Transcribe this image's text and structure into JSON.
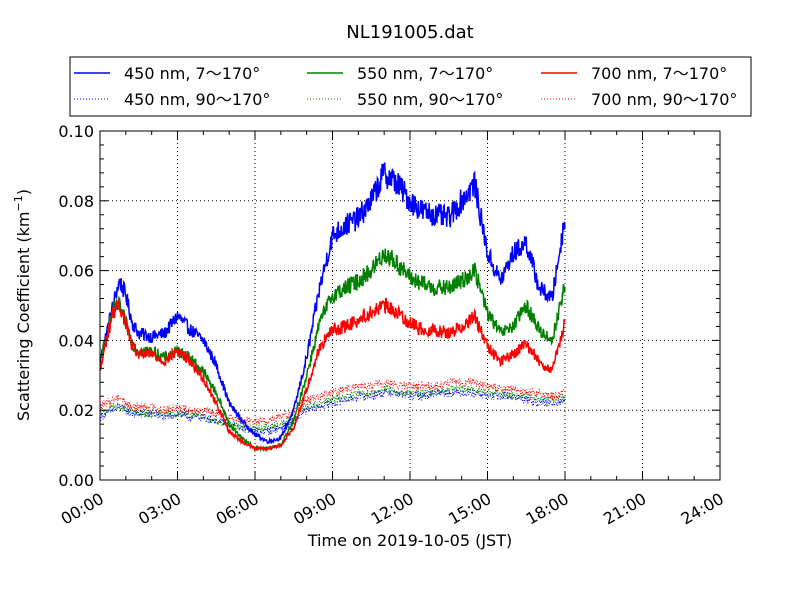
{
  "chart_data": {
    "type": "line",
    "title": "NL191005.dat",
    "xlabel": "Time on 2019-10-05 (JST)",
    "ylabel_main": "Scattering Coefficient (km",
    "ylabel_sup": "−1",
    "ylabel_close": ")",
    "xlim": [
      "00:00",
      "24:00"
    ],
    "ylim": [
      0.0,
      0.1
    ],
    "xticks": [
      "00:00",
      "03:00",
      "06:00",
      "09:00",
      "12:00",
      "15:00",
      "18:00",
      "21:00",
      "24:00"
    ],
    "yticks": [
      "0.00",
      "0.02",
      "0.04",
      "0.06",
      "0.08",
      "0.10"
    ],
    "grid": true,
    "legend_position": "top",
    "colors": {
      "blue": "#0000ff",
      "green": "#008000",
      "red": "#ff0000"
    },
    "x_hours": [
      0,
      0.25,
      0.5,
      0.75,
      1,
      1.25,
      1.5,
      2,
      2.5,
      3,
      3.5,
      4,
      4.5,
      5,
      5.5,
      6,
      6.5,
      7,
      7.5,
      8,
      8.5,
      9,
      9.5,
      10,
      10.5,
      11,
      11.5,
      12,
      12.5,
      13,
      13.5,
      14,
      14.5,
      15,
      15.5,
      16,
      16.5,
      17,
      17.5,
      18
    ],
    "series": [
      {
        "name": "450 nm, 7～170°",
        "color": "#0000ff",
        "style": "solid",
        "values": [
          0.034,
          0.042,
          0.05,
          0.057,
          0.053,
          0.045,
          0.042,
          0.041,
          0.042,
          0.047,
          0.043,
          0.04,
          0.033,
          0.022,
          0.017,
          0.013,
          0.011,
          0.012,
          0.02,
          0.035,
          0.055,
          0.07,
          0.073,
          0.075,
          0.08,
          0.088,
          0.085,
          0.08,
          0.077,
          0.076,
          0.075,
          0.08,
          0.085,
          0.065,
          0.057,
          0.065,
          0.068,
          0.055,
          0.052,
          0.075
        ]
      },
      {
        "name": "450 nm, 90～170°",
        "color": "#0000ff",
        "style": "dotted",
        "values": [
          0.018,
          0.019,
          0.02,
          0.021,
          0.02,
          0.019,
          0.019,
          0.019,
          0.018,
          0.019,
          0.018,
          0.018,
          0.017,
          0.016,
          0.015,
          0.014,
          0.014,
          0.015,
          0.017,
          0.02,
          0.021,
          0.022,
          0.023,
          0.024,
          0.024,
          0.025,
          0.025,
          0.024,
          0.024,
          0.025,
          0.025,
          0.025,
          0.025,
          0.024,
          0.024,
          0.024,
          0.023,
          0.022,
          0.022,
          0.023
        ]
      },
      {
        "name": "550 nm, 7～170°",
        "color": "#008000",
        "style": "solid",
        "values": [
          0.034,
          0.041,
          0.049,
          0.05,
          0.045,
          0.039,
          0.037,
          0.037,
          0.035,
          0.037,
          0.035,
          0.031,
          0.025,
          0.016,
          0.012,
          0.009,
          0.009,
          0.01,
          0.017,
          0.03,
          0.045,
          0.053,
          0.055,
          0.057,
          0.06,
          0.065,
          0.062,
          0.058,
          0.056,
          0.055,
          0.055,
          0.057,
          0.06,
          0.048,
          0.042,
          0.044,
          0.05,
          0.043,
          0.04,
          0.056
        ]
      },
      {
        "name": "550 nm, 90～170°",
        "color": "#008000",
        "style": "dotted",
        "values": [
          0.019,
          0.02,
          0.021,
          0.021,
          0.02,
          0.02,
          0.019,
          0.019,
          0.019,
          0.019,
          0.019,
          0.018,
          0.017,
          0.016,
          0.015,
          0.015,
          0.015,
          0.016,
          0.018,
          0.021,
          0.022,
          0.023,
          0.024,
          0.025,
          0.025,
          0.026,
          0.025,
          0.025,
          0.025,
          0.025,
          0.026,
          0.026,
          0.026,
          0.025,
          0.025,
          0.024,
          0.024,
          0.023,
          0.023,
          0.024
        ]
      },
      {
        "name": "700 nm, 7～170°",
        "color": "#ff0000",
        "style": "solid",
        "values": [
          0.031,
          0.04,
          0.048,
          0.05,
          0.045,
          0.038,
          0.036,
          0.036,
          0.034,
          0.037,
          0.034,
          0.029,
          0.022,
          0.014,
          0.011,
          0.009,
          0.009,
          0.01,
          0.015,
          0.026,
          0.038,
          0.043,
          0.044,
          0.046,
          0.048,
          0.05,
          0.048,
          0.045,
          0.043,
          0.043,
          0.042,
          0.044,
          0.047,
          0.038,
          0.034,
          0.036,
          0.039,
          0.034,
          0.031,
          0.045
        ]
      },
      {
        "name": "700 nm, 90～170°",
        "color": "#ff0000",
        "style": "dotted",
        "values": [
          0.021,
          0.022,
          0.023,
          0.024,
          0.022,
          0.021,
          0.021,
          0.021,
          0.02,
          0.021,
          0.02,
          0.02,
          0.019,
          0.018,
          0.017,
          0.017,
          0.017,
          0.018,
          0.02,
          0.023,
          0.024,
          0.025,
          0.026,
          0.027,
          0.027,
          0.028,
          0.027,
          0.027,
          0.027,
          0.027,
          0.028,
          0.028,
          0.028,
          0.027,
          0.026,
          0.026,
          0.025,
          0.025,
          0.024,
          0.025
        ]
      }
    ]
  }
}
